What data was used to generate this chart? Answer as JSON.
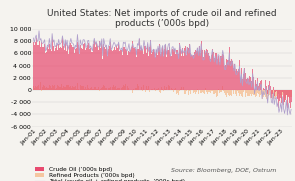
{
  "title": "United States: Net imports of crude oil and refined\nproducts (’000s bpd)",
  "source": "Source: Bloomberg, DOE, Ostrum",
  "ylim": [
    -6000,
    10000
  ],
  "yticks": [
    -6000,
    -4000,
    -2000,
    0,
    2000,
    4000,
    6000,
    8000,
    10000
  ],
  "ytick_labels": [
    "-6 000",
    "-4 000",
    "-2 000",
    "0",
    "2 000",
    "4 000",
    "6 000",
    "8 000",
    "10 000"
  ],
  "xlabel_dates": [
    "Jan-01",
    "Jan-02",
    "Jan-03",
    "Jan-04",
    "Jan-05",
    "Jan-06",
    "Jan-07",
    "Jan-08",
    "Jan-09",
    "Jan-10",
    "Jan-11",
    "Jan-12",
    "Jan-13",
    "Jan-14",
    "Jan-15",
    "Jan-16",
    "Jan-17",
    "Jan-18",
    "Jan-19",
    "Jan-20",
    "Jan-21",
    "Jan-22",
    "Jan-23"
  ],
  "bar_color_crude": "#e84a6f",
  "bar_color_refined": "#f5c6a0",
  "line_color_total": "#b0a0cc",
  "background_color": "#f5f3ef",
  "legend_labels": [
    "Crude Oil (’000s bpd)",
    "Refined Products (’000s bpd)",
    "Total (crude oil + refined products, ’000s bpd)"
  ],
  "title_fontsize": 6.5,
  "tick_fontsize": 4.5,
  "legend_fontsize": 4.2,
  "source_fontsize": 4.5,
  "n_bars": 276
}
